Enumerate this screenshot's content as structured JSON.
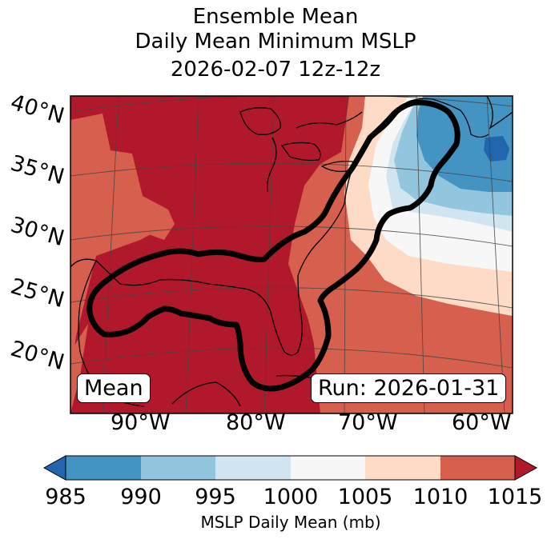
{
  "title": {
    "line1": "Ensemble Mean",
    "line2": "Daily Mean Minimum MSLP",
    "line3": "2026-02-07 12z-12z"
  },
  "map": {
    "lat_labels": [
      "40°N",
      "35°N",
      "30°N",
      "25°N",
      "20°N"
    ],
    "lon_labels": [
      "90°W",
      "80°W",
      "70°W",
      "60°W"
    ],
    "left_box": "Mean",
    "right_box": "Run: 2026-01-31",
    "field": "MSLP daily mean",
    "contour_color": "#000000"
  },
  "colorbar": {
    "label": "MSLP Daily Mean (mb)",
    "ticks": [
      "985",
      "990",
      "995",
      "1000",
      "1005",
      "1010",
      "1015"
    ],
    "bins": [
      {
        "range": "<985",
        "color": "#2166ac"
      },
      {
        "range": "985-990",
        "color": "#4393c3"
      },
      {
        "range": "990-995",
        "color": "#92c5de"
      },
      {
        "range": "995-1000",
        "color": "#d1e5f0"
      },
      {
        "range": "1000-1005",
        "color": "#f7f7f7"
      },
      {
        "range": "1005-1010",
        "color": "#fddbc7"
      },
      {
        "range": "1010-1015",
        "color": "#d6604d"
      },
      {
        "range": ">1015",
        "color": "#b2182b"
      }
    ]
  }
}
